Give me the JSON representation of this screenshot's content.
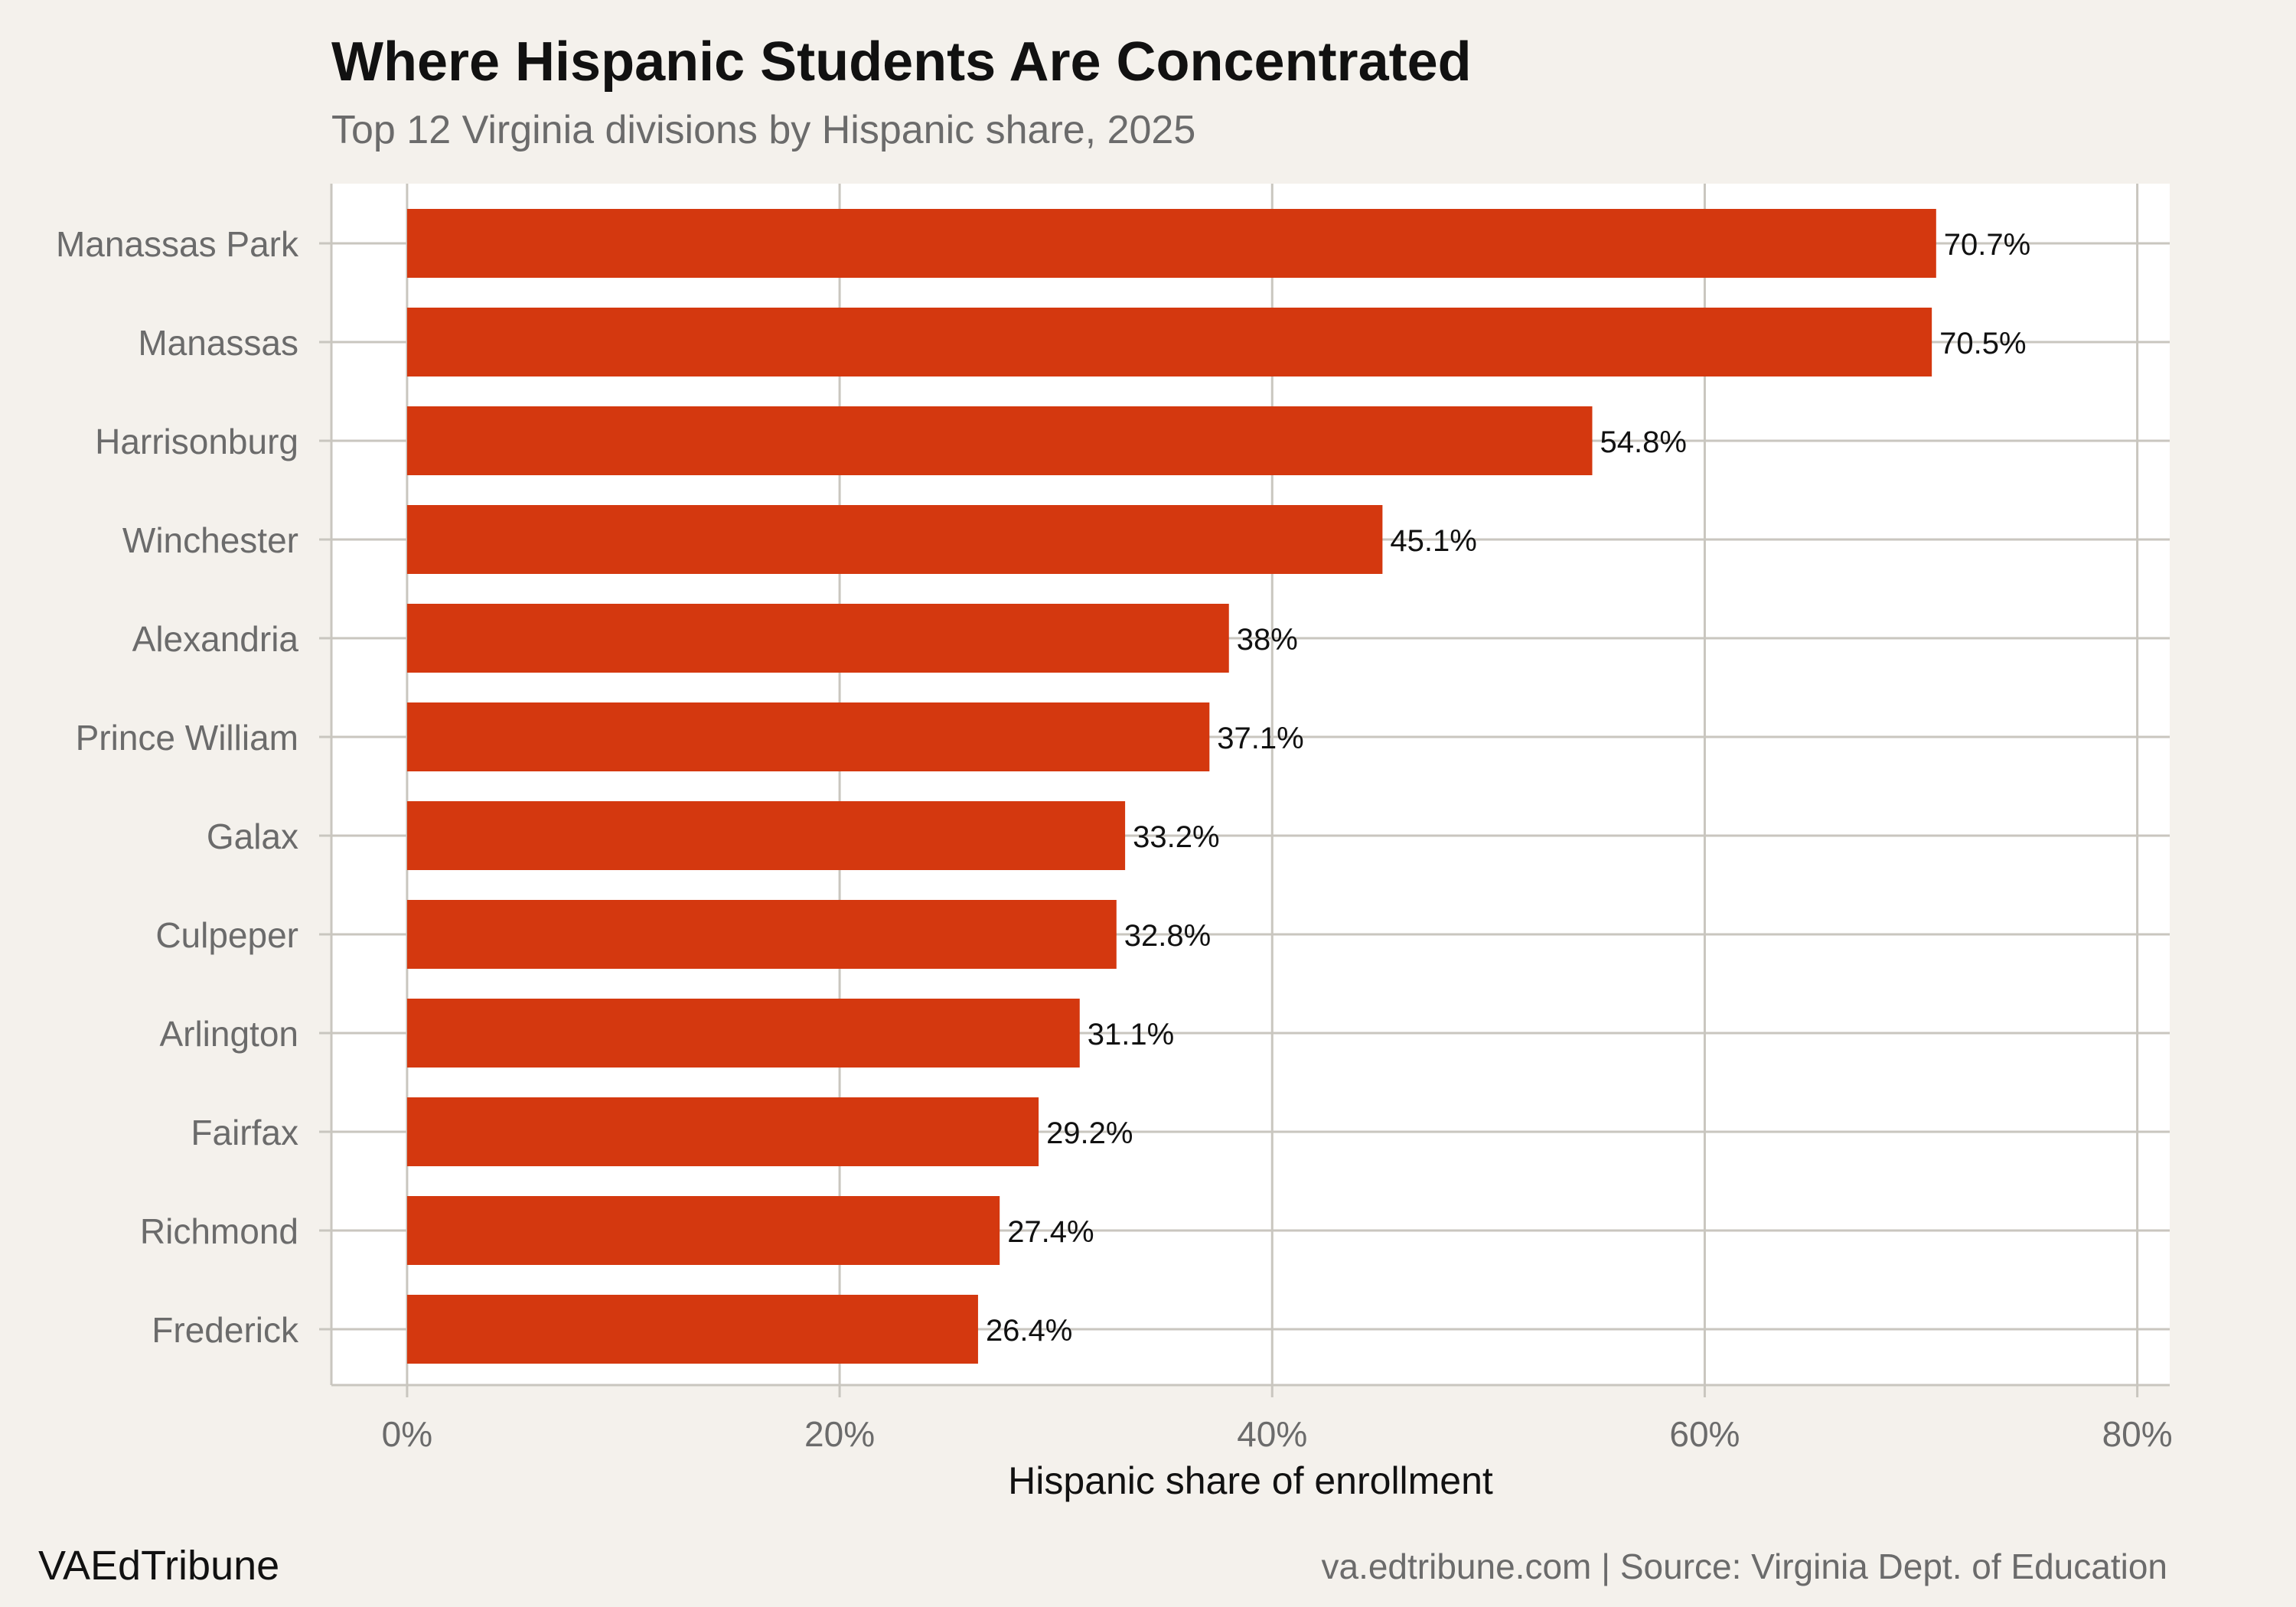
{
  "header": {
    "title": "Where Hispanic Students Are Concentrated",
    "subtitle": "Top 12 Virginia divisions by Hispanic share, 2025"
  },
  "footer": {
    "brand": "VAEdTribune",
    "source": "va.edtribune.com | Source: Virginia Dept. of Education"
  },
  "colors": {
    "bar": "#d4380f",
    "background": "#f4f1ec",
    "panel": "#ffffff",
    "grid": "#c9c6bf",
    "tick_label": "#6b6b6b",
    "value_label": "#111111"
  },
  "chart_data": {
    "type": "bar",
    "orientation": "horizontal",
    "categories": [
      "Manassas Park",
      "Manassas",
      "Harrisonburg",
      "Winchester",
      "Alexandria",
      "Prince William",
      "Galax",
      "Culpeper",
      "Arlington",
      "Fairfax",
      "Richmond",
      "Frederick"
    ],
    "values": [
      70.7,
      70.5,
      54.8,
      45.1,
      38.0,
      37.1,
      33.2,
      32.8,
      31.1,
      29.2,
      27.4,
      26.4
    ],
    "value_labels": [
      "70.7%",
      "70.5%",
      "54.8%",
      "45.1%",
      "38%",
      "37.1%",
      "33.2%",
      "32.8%",
      "31.1%",
      "29.2%",
      "27.4%",
      "26.4%"
    ],
    "xlabel": "Hispanic share of enrollment",
    "ylabel": "",
    "xlim": [
      -3.5,
      81.5
    ],
    "x_ticks": [
      0,
      20,
      40,
      60,
      80
    ],
    "x_tick_labels": [
      "0%",
      "20%",
      "40%",
      "60%",
      "80%"
    ],
    "grid": true,
    "legend": "none"
  }
}
